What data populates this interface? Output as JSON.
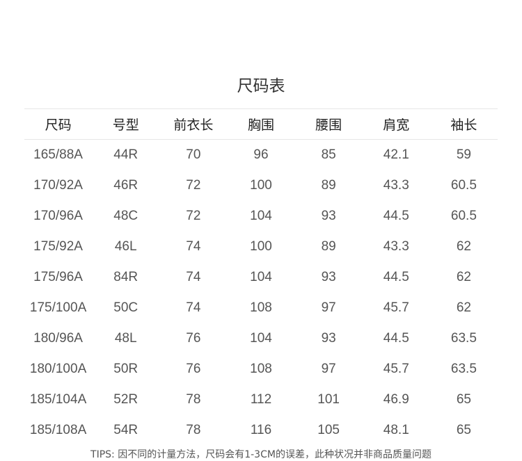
{
  "title": "尺码表",
  "headers": [
    "尺码",
    "号型",
    "前衣长",
    "胸围",
    "腰围",
    "肩宽",
    "袖长"
  ],
  "rows": [
    [
      "165/88A",
      "44R",
      "70",
      "96",
      "85",
      "42.1",
      "59"
    ],
    [
      "170/92A",
      "46R",
      "72",
      "100",
      "89",
      "43.3",
      "60.5"
    ],
    [
      "170/96A",
      "48C",
      "72",
      "104",
      "93",
      "44.5",
      "60.5"
    ],
    [
      "175/92A",
      "46L",
      "74",
      "100",
      "89",
      "43.3",
      "62"
    ],
    [
      "175/96A",
      "84R",
      "74",
      "104",
      "93",
      "44.5",
      "62"
    ],
    [
      "175/100A",
      "50C",
      "74",
      "108",
      "97",
      "45.7",
      "62"
    ],
    [
      "180/96A",
      "48L",
      "76",
      "104",
      "93",
      "44.5",
      "63.5"
    ],
    [
      "180/100A",
      "50R",
      "76",
      "108",
      "97",
      "45.7",
      "63.5"
    ],
    [
      "185/104A",
      "52R",
      "78",
      "112",
      "101",
      "46.9",
      "65"
    ],
    [
      "185/108A",
      "54R",
      "78",
      "116",
      "105",
      "48.1",
      "65"
    ]
  ],
  "tips": "TIPS: 因不同的计量方法，尺码会有1-3CM的误差，此种状况并非商品质量问题"
}
